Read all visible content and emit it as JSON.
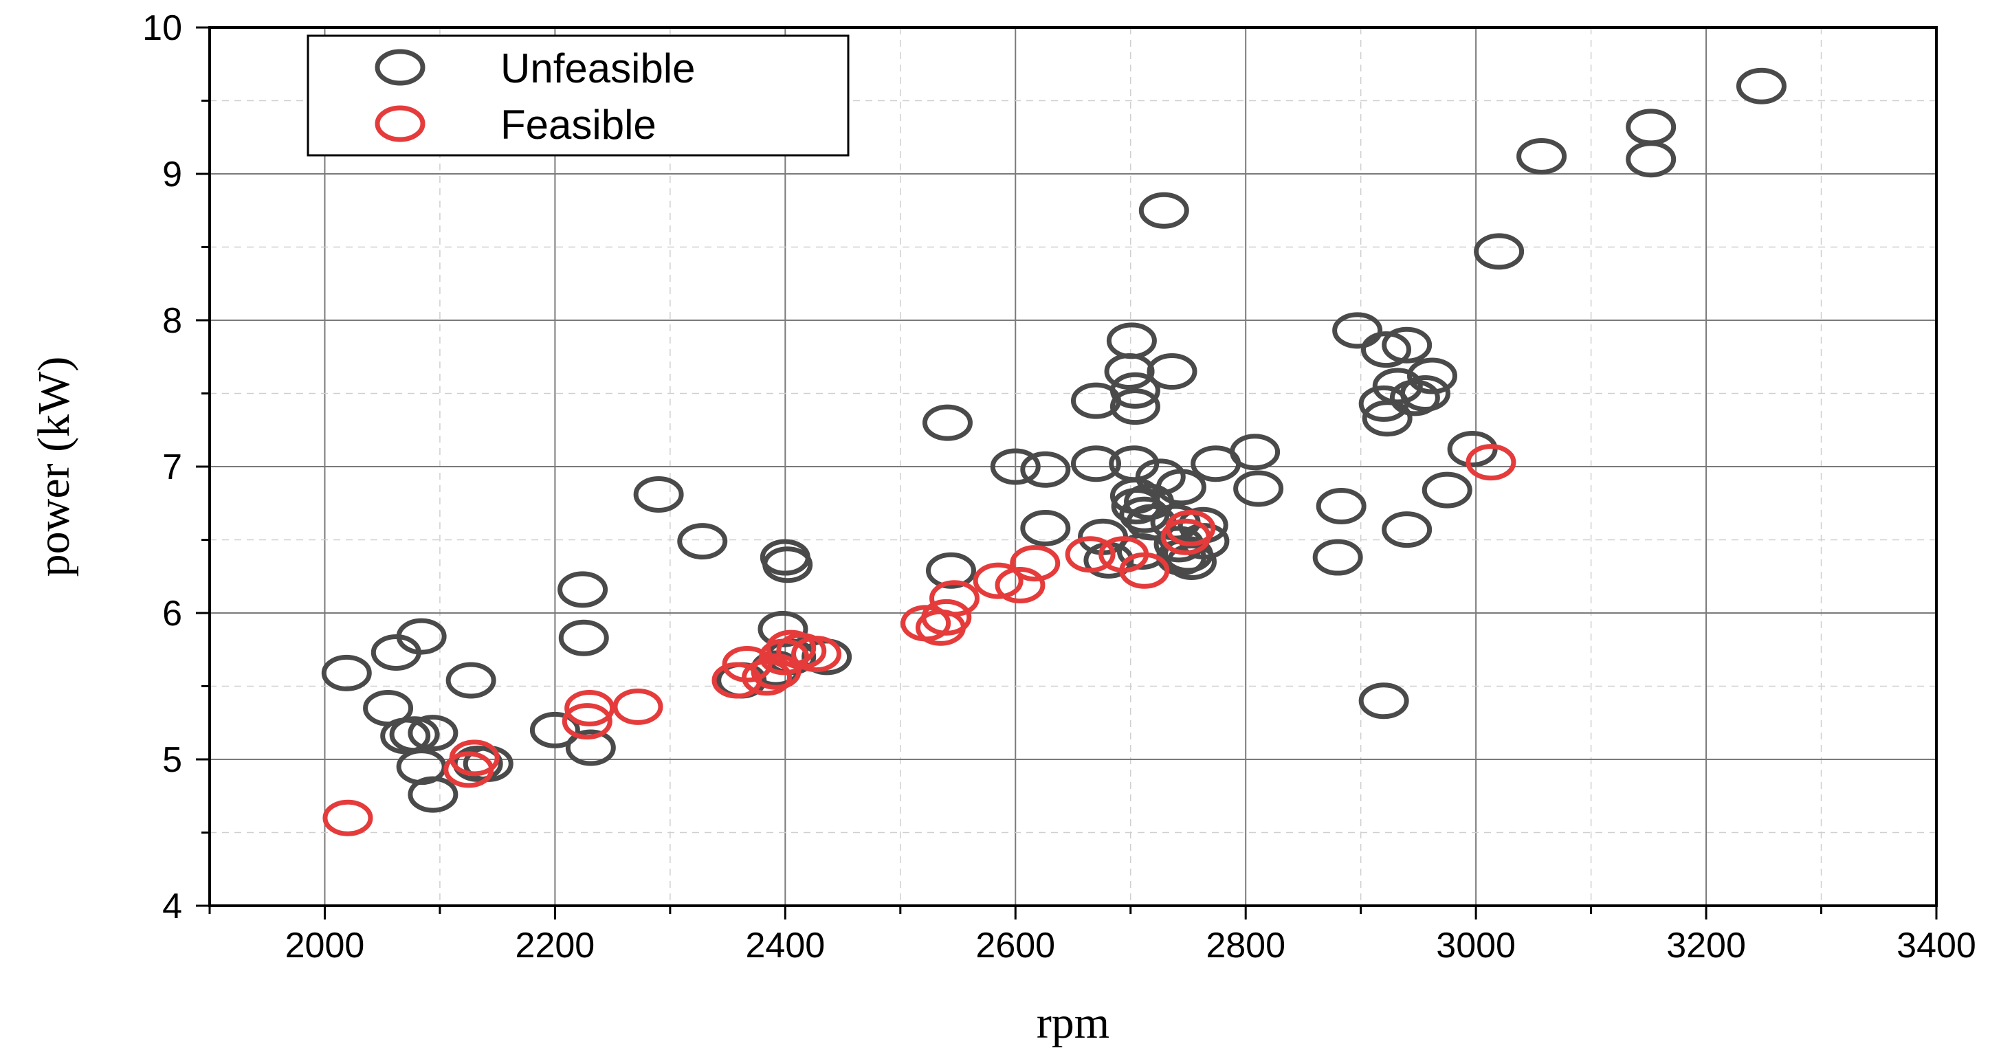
{
  "chart_data": {
    "type": "scatter",
    "title": "",
    "xlabel": "rpm",
    "ylabel": "power (kW)",
    "xlim": [
      1900,
      3400
    ],
    "ylim": [
      4,
      10
    ],
    "xticks": [
      "2000",
      "2200",
      "2400",
      "2600",
      "2800",
      "3000",
      "3200",
      "3400"
    ],
    "yticks": [
      "4",
      "5",
      "6",
      "7",
      "8",
      "9",
      "10"
    ],
    "grid": true,
    "legend_position": "top-left",
    "series": [
      {
        "name": "Unfeasible",
        "color": "#4a4a4a",
        "marker": "open-circle",
        "points": [
          [
            2019,
            5.59
          ],
          [
            2055,
            5.35
          ],
          [
            2062,
            5.73
          ],
          [
            2070,
            5.16
          ],
          [
            2078,
            5.17
          ],
          [
            2084,
            5.84
          ],
          [
            2084,
            4.95
          ],
          [
            2094,
            5.18
          ],
          [
            2094,
            4.76
          ],
          [
            2127,
            5.54
          ],
          [
            2133,
            4.97
          ],
          [
            2142,
            4.97
          ],
          [
            2200,
            5.2
          ],
          [
            2224,
            6.16
          ],
          [
            2225,
            5.83
          ],
          [
            2231,
            5.08
          ],
          [
            2290,
            6.81
          ],
          [
            2328,
            6.49
          ],
          [
            2362,
            5.54
          ],
          [
            2392,
            5.62
          ],
          [
            2398,
            5.89
          ],
          [
            2400,
            6.38
          ],
          [
            2402,
            6.33
          ],
          [
            2405,
            5.7
          ],
          [
            2436,
            5.7
          ],
          [
            2541,
            7.3
          ],
          [
            2544,
            6.29
          ],
          [
            2600,
            7.0
          ],
          [
            2626,
            6.98
          ],
          [
            2626,
            6.58
          ],
          [
            2670,
            7.45
          ],
          [
            2670,
            7.02
          ],
          [
            2676,
            6.52
          ],
          [
            2681,
            6.36
          ],
          [
            2699,
            7.65
          ],
          [
            2701,
            7.86
          ],
          [
            2703,
            7.02
          ],
          [
            2704,
            7.41
          ],
          [
            2704,
            7.52
          ],
          [
            2704,
            6.8
          ],
          [
            2705,
            6.73
          ],
          [
            2710,
            6.42
          ],
          [
            2712,
            6.67
          ],
          [
            2716,
            6.76
          ],
          [
            2718,
            6.62
          ],
          [
            2726,
            6.93
          ],
          [
            2729,
            8.75
          ],
          [
            2736,
            7.65
          ],
          [
            2739,
            6.62
          ],
          [
            2742,
            6.47
          ],
          [
            2744,
            6.38
          ],
          [
            2744,
            6.86
          ],
          [
            2750,
            6.4
          ],
          [
            2753,
            6.35
          ],
          [
            2763,
            6.6
          ],
          [
            2764,
            6.49
          ],
          [
            2774,
            7.02
          ],
          [
            2808,
            7.1
          ],
          [
            2811,
            6.85
          ],
          [
            2880,
            6.38
          ],
          [
            2883,
            6.73
          ],
          [
            2897,
            7.93
          ],
          [
            2920,
            5.4
          ],
          [
            2920,
            7.43
          ],
          [
            2922,
            7.8
          ],
          [
            2923,
            7.33
          ],
          [
            2932,
            7.55
          ],
          [
            2940,
            7.83
          ],
          [
            2940,
            6.57
          ],
          [
            2947,
            7.47
          ],
          [
            2956,
            7.5
          ],
          [
            2962,
            7.62
          ],
          [
            2975,
            6.84
          ],
          [
            2997,
            7.12
          ],
          [
            3020,
            8.47
          ],
          [
            3057,
            9.12
          ],
          [
            3152,
            9.32
          ],
          [
            3152,
            9.1
          ],
          [
            3248,
            9.6
          ]
        ]
      },
      {
        "name": "Feasible",
        "color": "#e53b3b",
        "marker": "open-circle",
        "points": [
          [
            2020,
            4.6
          ],
          [
            2125,
            4.93
          ],
          [
            2130,
            5.01
          ],
          [
            2228,
            5.26
          ],
          [
            2230,
            5.35
          ],
          [
            2272,
            5.36
          ],
          [
            2358,
            5.54
          ],
          [
            2367,
            5.65
          ],
          [
            2384,
            5.56
          ],
          [
            2392,
            5.6
          ],
          [
            2399,
            5.7
          ],
          [
            2405,
            5.76
          ],
          [
            2414,
            5.74
          ],
          [
            2427,
            5.72
          ],
          [
            2522,
            5.93
          ],
          [
            2535,
            5.9
          ],
          [
            2540,
            5.97
          ],
          [
            2547,
            6.1
          ],
          [
            2585,
            6.22
          ],
          [
            2604,
            6.19
          ],
          [
            2617,
            6.34
          ],
          [
            2665,
            6.4
          ],
          [
            2694,
            6.4
          ],
          [
            2712,
            6.29
          ],
          [
            2748,
            6.52
          ],
          [
            2752,
            6.58
          ],
          [
            3013,
            7.03
          ]
        ]
      }
    ]
  }
}
